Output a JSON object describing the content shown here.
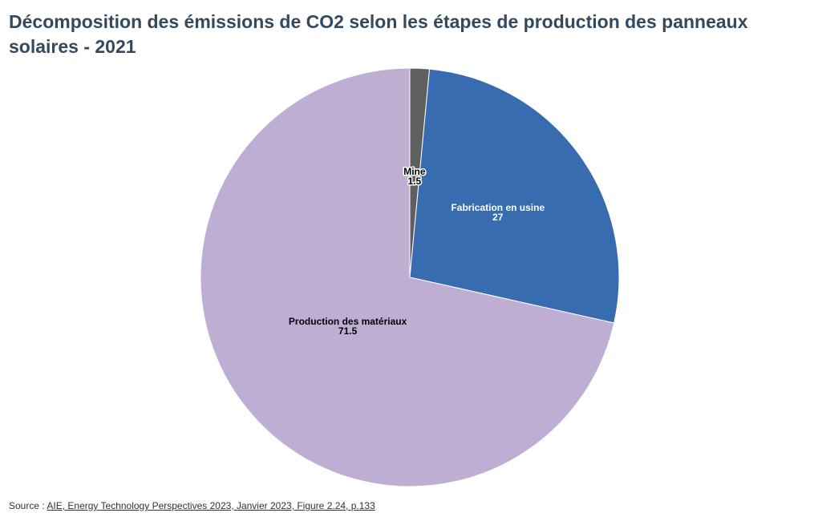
{
  "title": "Décomposition des émissions de CO2 selon les étapes de production des panneaux solaires - 2021",
  "source": {
    "prefix": "Source : ",
    "link_text": "AIE, Energy Technology Perspectives 2023, Janvier 2023, Figure 2.24, p.133"
  },
  "chart_data": {
    "type": "pie",
    "title": "Décomposition des émissions de CO2 selon les étapes de production des panneaux solaires - 2021",
    "start_angle": "top (12 o'clock)",
    "direction": "clockwise",
    "legend": "none",
    "slices": [
      {
        "label": "Mine",
        "value": 1.5,
        "value_label": "1.5",
        "color": "#5f5f5f",
        "text_color": "#000000",
        "halo_color": "#ffffff"
      },
      {
        "label": "Fabrication en usine",
        "value": 27,
        "value_label": "27",
        "color": "#386cb0",
        "text_color": "#ffffff",
        "halo_color": "#386cb0"
      },
      {
        "label": "Production des matériaux",
        "value": 71.5,
        "value_label": "71.5",
        "color": "#beaed4",
        "text_color": "#000000",
        "halo_color": "#beaed4"
      }
    ]
  }
}
